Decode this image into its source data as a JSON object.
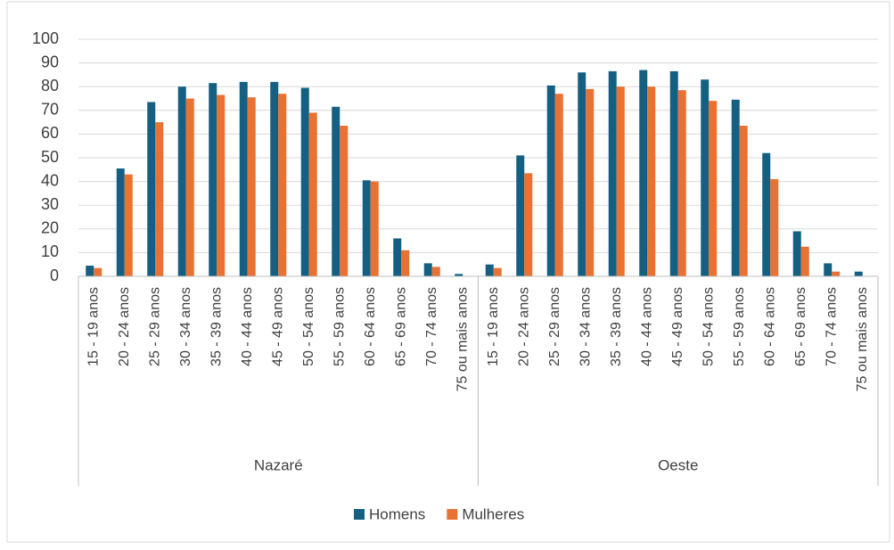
{
  "chart_data": {
    "type": "bar",
    "groups": [
      "Nazaré",
      "Oeste"
    ],
    "categories": [
      "15 - 19 anos",
      "20 - 24 anos",
      "25 - 29 anos",
      "30 - 34 anos",
      "35 - 39 anos",
      "40 - 44 anos",
      "45 - 49 anos",
      "50 - 54 anos",
      "55 - 59 anos",
      "60 - 64 anos",
      "65 - 69 anos",
      "70 - 74 anos",
      "75 ou mais anos",
      "15 - 19 anos",
      "20 - 24 anos",
      "25 - 29 anos",
      "30 - 34 anos",
      "35 - 39 anos",
      "40 - 44 anos",
      "45 - 49 anos",
      "50 - 54 anos",
      "55 - 59 anos",
      "60 - 64 anos",
      "65 - 69 anos",
      "70 - 74 anos",
      "75 ou mais anos"
    ],
    "series": [
      {
        "name": "Homens",
        "color": "#156082",
        "values": [
          4.5,
          45.5,
          73.5,
          80,
          81.5,
          82,
          82,
          79.5,
          71.5,
          40.5,
          16,
          5.5,
          1,
          5,
          51,
          80.5,
          86,
          86.5,
          87,
          86.5,
          83,
          74.5,
          52,
          19,
          5.5,
          2
        ]
      },
      {
        "name": "Mulheres",
        "color": "#e97132",
        "values": [
          3.5,
          43,
          65,
          75,
          76.5,
          75.5,
          77,
          69,
          63.5,
          40,
          11,
          4,
          0,
          3.5,
          43.5,
          77,
          79,
          80,
          80,
          78.5,
          74,
          63.5,
          41,
          12.5,
          2,
          0
        ]
      }
    ],
    "ylim": [
      0,
      100
    ],
    "yticks": [
      0,
      10,
      20,
      30,
      40,
      50,
      60,
      70,
      80,
      90,
      100
    ],
    "grid": true,
    "legend": "bottom"
  }
}
